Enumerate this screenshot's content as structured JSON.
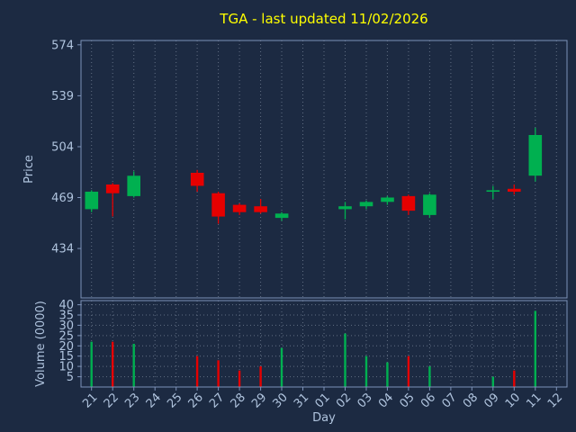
{
  "colors": {
    "background": "#1c2a42",
    "up": "#00b050",
    "down": "#e60000",
    "title": "#ffff00",
    "tick_label": "#b0c4de",
    "grid": "#6e7b8f",
    "spine": "#7d92b8"
  },
  "chart_data": {
    "type": "candlestick+volume",
    "title": "TGA - last updated 11/02/2026",
    "xlabel": "Day",
    "price_ylabel": "Price",
    "volume_ylabel": "Volume (0000)",
    "price_ticks": [
      574,
      539,
      504,
      469,
      434
    ],
    "price_ylim": [
      400,
      577
    ],
    "volume_ticks": [
      40,
      35,
      30,
      25,
      20,
      15,
      10,
      5
    ],
    "volume_ylim": [
      0,
      42
    ],
    "grid": "dotted vertical per day; dotted horizontal in volume panel",
    "legend": "none",
    "x_labels": [
      "21",
      "22",
      "23",
      "24",
      "25",
      "26",
      "27",
      "28",
      "29",
      "30",
      "31",
      "01",
      "02",
      "03",
      "04",
      "05",
      "06",
      "07",
      "08",
      "09",
      "10",
      "11",
      "12"
    ],
    "candles": [
      {
        "x": "21",
        "open": 461,
        "high": 474,
        "low": 459,
        "close": 473,
        "volume": 22
      },
      {
        "x": "22",
        "open": 478,
        "high": 479,
        "low": 456,
        "close": 472,
        "volume": 22
      },
      {
        "x": "23",
        "open": 470,
        "high": 487,
        "low": 469,
        "close": 484,
        "volume": 21
      },
      {
        "x": "26",
        "open": 486,
        "high": 488,
        "low": 473,
        "close": 477,
        "volume": 15
      },
      {
        "x": "27",
        "open": 472,
        "high": 473,
        "low": 451,
        "close": 456,
        "volume": 13
      },
      {
        "x": "28",
        "open": 464,
        "high": 465,
        "low": 457,
        "close": 459,
        "volume": 8
      },
      {
        "x": "29",
        "open": 463,
        "high": 468,
        "low": 458,
        "close": 459,
        "volume": 10
      },
      {
        "x": "30",
        "open": 455,
        "high": 459,
        "low": 453,
        "close": 458,
        "volume": 19
      },
      {
        "x": "02",
        "open": 461,
        "high": 466,
        "low": 454,
        "close": 463,
        "volume": 26
      },
      {
        "x": "03",
        "open": 463,
        "high": 467,
        "low": 461,
        "close": 466,
        "volume": 15
      },
      {
        "x": "04",
        "open": 466,
        "high": 470,
        "low": 464,
        "close": 469,
        "volume": 12
      },
      {
        "x": "05",
        "open": 470,
        "high": 471,
        "low": 457,
        "close": 460,
        "volume": 15
      },
      {
        "x": "06",
        "open": 457,
        "high": 472,
        "low": 455,
        "close": 471,
        "volume": 10
      },
      {
        "x": "09",
        "open": 473,
        "high": 477,
        "low": 468,
        "close": 474,
        "volume": 5
      },
      {
        "x": "10",
        "open": 475,
        "high": 478,
        "low": 471,
        "close": 473,
        "volume": 8
      },
      {
        "x": "11",
        "open": 484,
        "high": 517,
        "low": 480,
        "close": 512,
        "volume": 37
      }
    ]
  }
}
